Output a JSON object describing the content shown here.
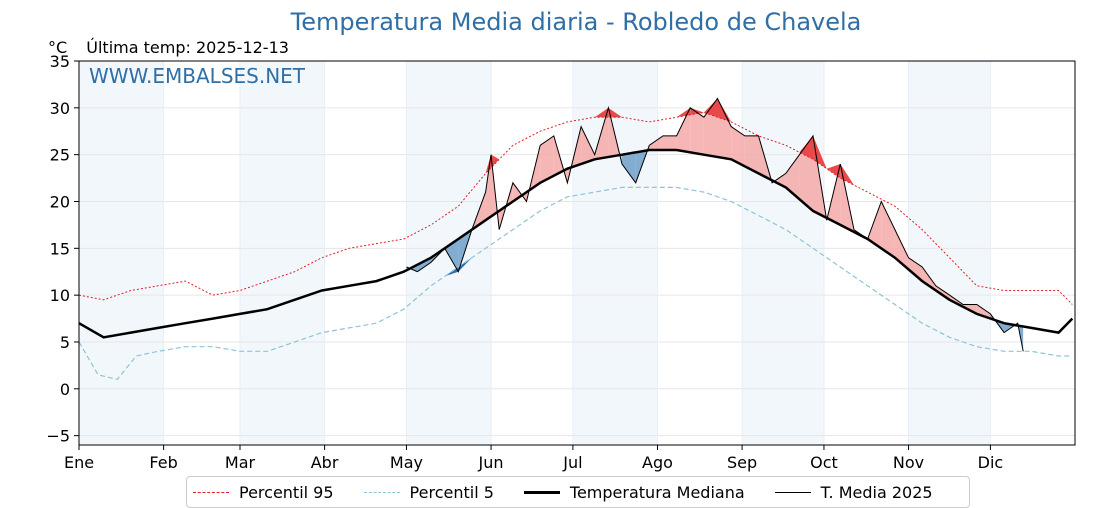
{
  "header": {
    "title": "Temperatura Media diaria - Robledo de Chavela",
    "unit": "°C",
    "last_temp": "Última temp: 2025-12-13"
  },
  "watermark": "WWW.EMBALSES.NET",
  "chart_data": {
    "type": "line",
    "title": "Temperatura Media diaria - Robledo de Chavela",
    "ylabel": "°C",
    "ylim": [
      -6,
      35
    ],
    "xlim": [
      1,
      366
    ],
    "yticks": [
      -5,
      0,
      5,
      10,
      15,
      20,
      25,
      30,
      35
    ],
    "months": [
      "Ene",
      "Feb",
      "Mar",
      "Abr",
      "May",
      "Jun",
      "Jul",
      "Ago",
      "Sep",
      "Oct",
      "Nov",
      "Dic"
    ],
    "month_start_day": [
      1,
      32,
      60,
      91,
      121,
      152,
      182,
      213,
      244,
      274,
      305,
      335
    ],
    "shaded_months": [
      "Ene",
      "Mar",
      "May",
      "Jul",
      "Sep",
      "Nov"
    ],
    "grid": true,
    "legend_placement": "bottom",
    "colors": {
      "p95": "#e0202a",
      "p5": "#8fc3d8",
      "median": "#000000",
      "current": "#000000",
      "above_fill": "#f4a9a8",
      "above_fill_strong": "#e84a4a",
      "below_fill": "#6f9fc8",
      "below_fill_strong": "#2f6fa6",
      "title": "#2f6fa6",
      "month_band": "#f2f7fc"
    },
    "series": [
      {
        "name": "Percentil 95",
        "style": "dotted-red",
        "x": [
          1,
          10,
          20,
          30,
          40,
          50,
          60,
          70,
          80,
          90,
          100,
          110,
          120,
          130,
          140,
          150,
          160,
          170,
          180,
          190,
          200,
          210,
          220,
          230,
          240,
          250,
          260,
          270,
          280,
          290,
          300,
          310,
          320,
          330,
          340,
          350,
          360,
          365
        ],
        "values": [
          10,
          9.5,
          10.5,
          11,
          11.5,
          10,
          10.5,
          11.5,
          12.5,
          14,
          15,
          15.5,
          16,
          17.5,
          19.5,
          23,
          26,
          27.5,
          28.5,
          29,
          29,
          28.5,
          29,
          29.5,
          28.5,
          27,
          26,
          24.5,
          22.5,
          21,
          19.5,
          17,
          14,
          11,
          10.5,
          10.5,
          10.5,
          9
        ]
      },
      {
        "name": "Percentil 5",
        "style": "dashed-lightblue",
        "x": [
          1,
          8,
          15,
          22,
          30,
          40,
          50,
          60,
          70,
          80,
          90,
          100,
          110,
          120,
          130,
          140,
          150,
          160,
          170,
          180,
          190,
          200,
          210,
          220,
          230,
          240,
          250,
          260,
          270,
          280,
          290,
          300,
          310,
          320,
          330,
          340,
          350,
          360,
          365
        ],
        "values": [
          5,
          1.5,
          1,
          3.5,
          4,
          4.5,
          4.5,
          4,
          4,
          5,
          6,
          6.5,
          7,
          8.5,
          11,
          13,
          15,
          17,
          19,
          20.5,
          21,
          21.5,
          21.5,
          21.5,
          21,
          20,
          18.5,
          17,
          15,
          13,
          11,
          9,
          7,
          5.5,
          4.5,
          4,
          4,
          3.5,
          3.5
        ]
      },
      {
        "name": "Temperatura Mediana",
        "style": "solid-thick-black",
        "x": [
          1,
          10,
          20,
          30,
          40,
          50,
          60,
          70,
          80,
          90,
          100,
          110,
          120,
          130,
          140,
          150,
          160,
          170,
          180,
          190,
          200,
          210,
          220,
          230,
          240,
          250,
          260,
          270,
          280,
          290,
          300,
          310,
          320,
          330,
          340,
          350,
          360,
          365
        ],
        "values": [
          7,
          5.5,
          6,
          6.5,
          7,
          7.5,
          8,
          8.5,
          9.5,
          10.5,
          11,
          11.5,
          12.5,
          14,
          16,
          18,
          20,
          22,
          23.5,
          24.5,
          25,
          25.5,
          25.5,
          25,
          24.5,
          23,
          21.5,
          19,
          17.5,
          16,
          14,
          11.5,
          9.5,
          8,
          7,
          6.5,
          6,
          7.5
        ]
      },
      {
        "name": "T. Media 2025",
        "style": "solid-thin-black",
        "x": [
          121,
          125,
          130,
          135,
          140,
          145,
          150,
          152,
          155,
          160,
          165,
          170,
          175,
          180,
          185,
          190,
          195,
          200,
          205,
          210,
          215,
          220,
          225,
          230,
          235,
          240,
          245,
          250,
          255,
          260,
          265,
          270,
          275,
          280,
          285,
          290,
          295,
          300,
          305,
          310,
          315,
          320,
          325,
          330,
          335,
          340,
          345,
          347
        ],
        "values": [
          13,
          12.5,
          13.5,
          15,
          12.5,
          17,
          21,
          25,
          17,
          22,
          20,
          26,
          27,
          22,
          28,
          25,
          30,
          24,
          22,
          26,
          27,
          27,
          30,
          29,
          31,
          28,
          27,
          27,
          22,
          23,
          25,
          27,
          18,
          24,
          17,
          16,
          20,
          17,
          14,
          13,
          11,
          10,
          9,
          9,
          8,
          6,
          7,
          4
        ]
      }
    ]
  },
  "legend": {
    "p95": "Percentil 95",
    "p5": "Percentil 5",
    "median": "Temperatura Mediana",
    "current": "T. Media 2025"
  }
}
